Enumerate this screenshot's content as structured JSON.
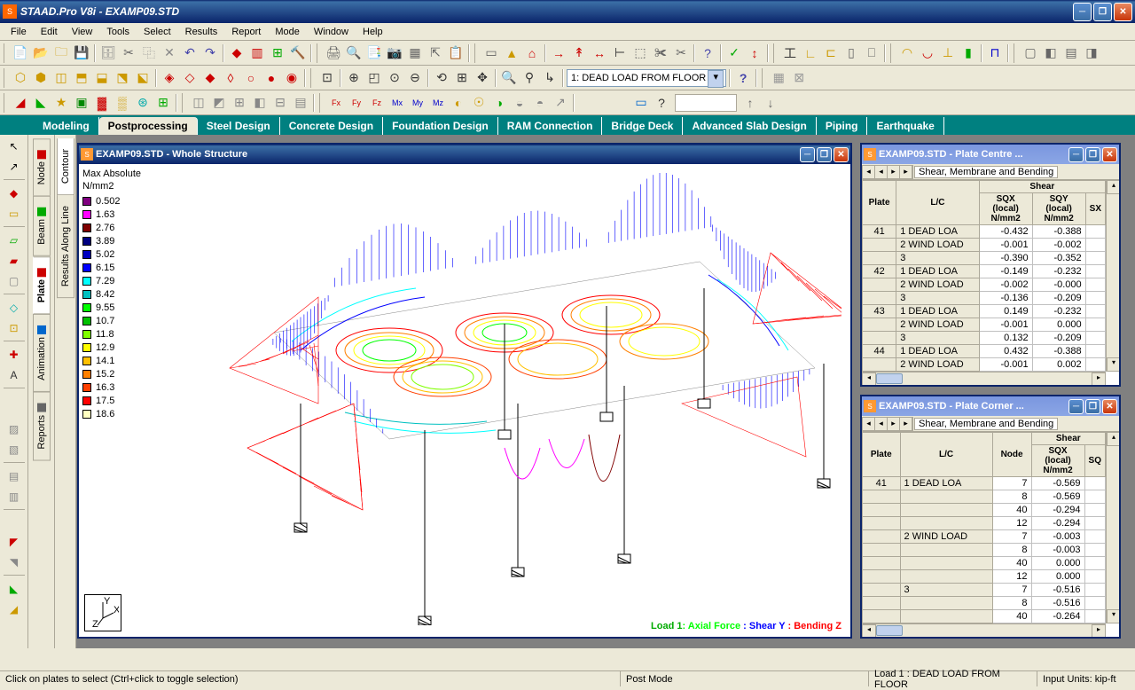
{
  "app": {
    "title": "STAAD.Pro V8i - EXAMP09.STD",
    "icon_text": "S"
  },
  "menu": [
    "File",
    "Edit",
    "View",
    "Tools",
    "Select",
    "Results",
    "Report",
    "Mode",
    "Window",
    "Help"
  ],
  "toolbar": {
    "load_combo": "1: DEAD LOAD FROM FLOOR"
  },
  "mode_tabs": [
    "Modeling",
    "Postprocessing",
    "Steel Design",
    "Concrete Design",
    "Foundation Design",
    "RAM Connection",
    "Bridge Deck",
    "Advanced Slab Design",
    "Piping",
    "Earthquake"
  ],
  "mode_active": 1,
  "page_tabs": [
    "Node",
    "Beam",
    "Plate",
    "Animation",
    "Reports"
  ],
  "page_active": 2,
  "vert_tabs": [
    "Contour",
    "Results Along Line"
  ],
  "vert_active": 0,
  "main_window": {
    "title": "EXAMP09.STD - Whole Structure",
    "legend_title": "Max Absolute\nN/mm2",
    "legend": [
      {
        "v": "0.502",
        "c": "#800080"
      },
      {
        "v": "1.63",
        "c": "#ff00ff"
      },
      {
        "v": "2.76",
        "c": "#800000"
      },
      {
        "v": "3.89",
        "c": "#000080"
      },
      {
        "v": "5.02",
        "c": "#0000c0"
      },
      {
        "v": "6.15",
        "c": "#0000ff"
      },
      {
        "v": "7.29",
        "c": "#00ffff"
      },
      {
        "v": "8.42",
        "c": "#00c0c0"
      },
      {
        "v": "9.55",
        "c": "#00ff00"
      },
      {
        "v": "10.7",
        "c": "#00c000"
      },
      {
        "v": "11.8",
        "c": "#80ff00"
      },
      {
        "v": "12.9",
        "c": "#ffff00"
      },
      {
        "v": "14.1",
        "c": "#ffc000"
      },
      {
        "v": "15.2",
        "c": "#ff8000"
      },
      {
        "v": "16.3",
        "c": "#ff4000"
      },
      {
        "v": "17.5",
        "c": "#ff0000"
      },
      {
        "v": "18.6",
        "c": "#ffffc0"
      }
    ],
    "load_label": "Load 1",
    "load_parts": [
      {
        "t": ": Axial Force ",
        "c": "#00ff00"
      },
      {
        "t": ": Shear Y ",
        "c": "#0000ff"
      },
      {
        "t": ": Bending Z",
        "c": "#ff0000"
      }
    ]
  },
  "plate_centre": {
    "title": "EXAMP09.STD - Plate Centre ...",
    "tab_label": "Shear, Membrane and Bending",
    "group_hdr": "Shear",
    "cols": [
      "Plate",
      "L/C",
      "SQX (local) N/mm2",
      "SQY (local) N/mm2",
      "SX"
    ],
    "rows": [
      [
        "41",
        "1 DEAD LOA",
        "-0.432",
        "-0.388",
        ""
      ],
      [
        "",
        "2 WIND LOAD",
        "-0.001",
        "-0.002",
        ""
      ],
      [
        "",
        "3",
        "-0.390",
        "-0.352",
        ""
      ],
      [
        "42",
        "1 DEAD LOA",
        "-0.149",
        "-0.232",
        ""
      ],
      [
        "",
        "2 WIND LOAD",
        "-0.002",
        "-0.000",
        ""
      ],
      [
        "",
        "3",
        "-0.136",
        "-0.209",
        ""
      ],
      [
        "43",
        "1 DEAD LOA",
        "0.149",
        "-0.232",
        ""
      ],
      [
        "",
        "2 WIND LOAD",
        "-0.001",
        "0.000",
        ""
      ],
      [
        "",
        "3",
        "0.132",
        "-0.209",
        ""
      ],
      [
        "44",
        "1 DEAD LOA",
        "0.432",
        "-0.388",
        ""
      ],
      [
        "",
        "2 WIND LOAD",
        "-0.001",
        "0.002",
        ""
      ]
    ]
  },
  "plate_corner": {
    "title": "EXAMP09.STD - Plate Corner ...",
    "tab_label": "Shear, Membrane and Bending",
    "group_hdr": "Shear",
    "cols": [
      "Plate",
      "L/C",
      "Node",
      "SQX (local) N/mm2",
      "SQ"
    ],
    "rows": [
      [
        "41",
        "1 DEAD LOA",
        "7",
        "-0.569",
        ""
      ],
      [
        "",
        "",
        "8",
        "-0.569",
        ""
      ],
      [
        "",
        "",
        "40",
        "-0.294",
        ""
      ],
      [
        "",
        "",
        "12",
        "-0.294",
        ""
      ],
      [
        "",
        "2 WIND LOAD",
        "7",
        "-0.003",
        ""
      ],
      [
        "",
        "",
        "8",
        "-0.003",
        ""
      ],
      [
        "",
        "",
        "40",
        "0.000",
        ""
      ],
      [
        "",
        "",
        "12",
        "0.000",
        ""
      ],
      [
        "",
        "3",
        "7",
        "-0.516",
        ""
      ],
      [
        "",
        "",
        "8",
        "-0.516",
        ""
      ],
      [
        "",
        "",
        "40",
        "-0.264",
        ""
      ]
    ]
  },
  "statusbar": {
    "hint": "Click on plates to select (Ctrl+click to toggle selection)",
    "mode": "Post Mode",
    "load": "Load 1 : DEAD LOAD FROM FLOOR",
    "units": "Input Units: kip-ft"
  }
}
